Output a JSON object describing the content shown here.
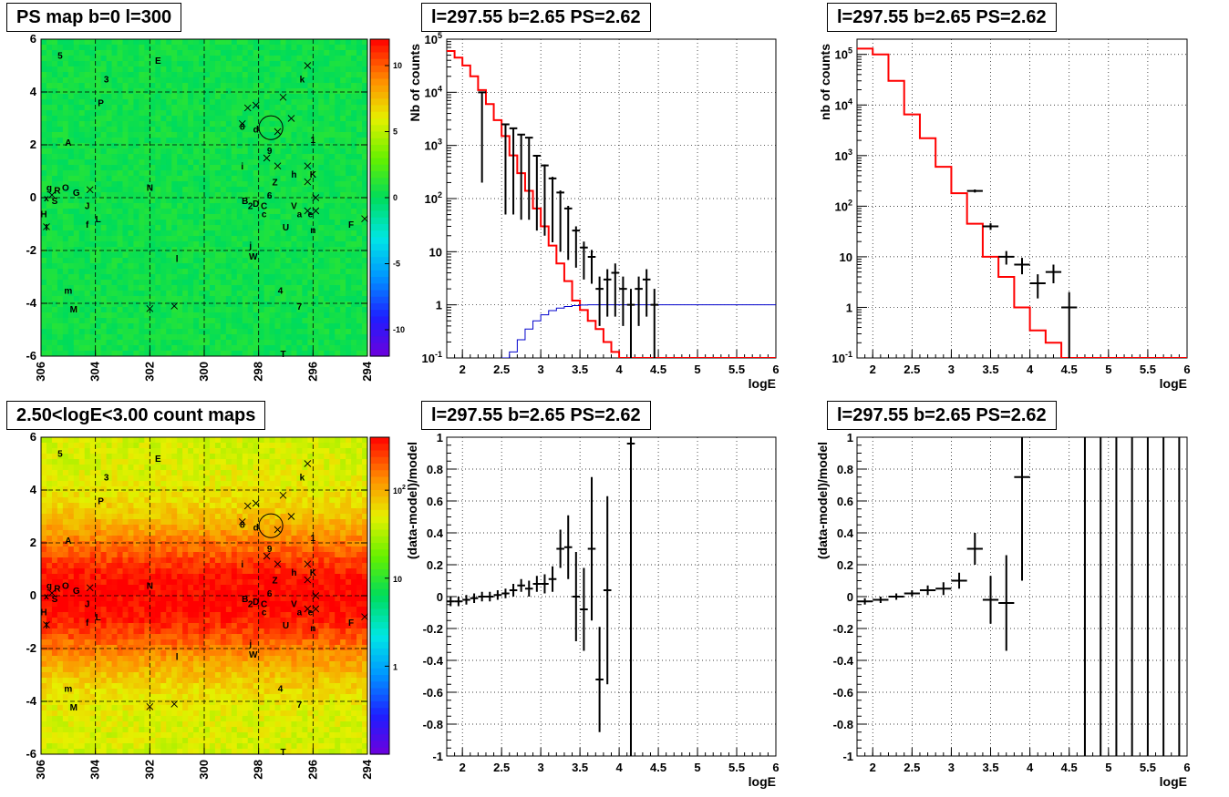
{
  "titles": {
    "ps_map": "PS map b=0 l=300",
    "count_map": "2.50<logE<3.00 count maps",
    "spec_left": "l=297.55 b=2.65 PS=2.62",
    "spec_right": "l=297.55 b=2.65 PS=2.62",
    "res_left": "l=297.55 b=2.65 PS=2.62",
    "res_right": "l=297.55 b=2.65 PS=2.62"
  },
  "colors": {
    "model": "#ff0000",
    "psf": "#0000cc",
    "data": "#000000",
    "grid": "#000000"
  },
  "chart_data": [
    {
      "id": "ps_map",
      "type": "heatmap",
      "title": "PS map b=0 l=300",
      "xlim": [
        306,
        294
      ],
      "ylim": [
        -6,
        6
      ],
      "x_ticks": [
        306,
        304,
        302,
        300,
        298,
        296,
        294
      ],
      "y_ticks": [
        -6,
        -4,
        -2,
        0,
        2,
        4,
        6
      ],
      "z_range": [
        -12,
        12
      ],
      "z_ticks": [
        10,
        5,
        0,
        -5,
        -10
      ],
      "colormap": "rainbow",
      "background_value": 0,
      "grid": true,
      "circle": {
        "l": 297.55,
        "b": 2.65,
        "r": 0.45
      },
      "sources": [
        {
          "label": "5",
          "l": 305.3,
          "b": 5.4
        },
        {
          "label": "3",
          "l": 303.6,
          "b": 4.5
        },
        {
          "label": "E",
          "l": 301.7,
          "b": 5.2
        },
        {
          "label": "k",
          "l": 296.4,
          "b": 4.5
        },
        {
          "label": "P",
          "l": 303.8,
          "b": 3.6
        },
        {
          "label": "A",
          "l": 305.0,
          "b": 2.1
        },
        {
          "label": "8",
          "l": 298.6,
          "b": 2.7
        },
        {
          "label": "d",
          "l": 298.1,
          "b": 2.6
        },
        {
          "label": "9",
          "l": 297.6,
          "b": 1.8
        },
        {
          "label": "1",
          "l": 296.0,
          "b": 2.2
        },
        {
          "label": "i",
          "l": 298.6,
          "b": 1.2
        },
        {
          "label": "h",
          "l": 296.7,
          "b": 0.9
        },
        {
          "label": "K",
          "l": 296.0,
          "b": 0.9
        },
        {
          "label": "Z",
          "l": 297.4,
          "b": 0.6
        },
        {
          "label": "N",
          "l": 302.0,
          "b": 0.4
        },
        {
          "label": "6",
          "l": 297.6,
          "b": 0.1
        },
        {
          "label": "g",
          "l": 305.7,
          "b": 0.4
        },
        {
          "label": "R",
          "l": 305.4,
          "b": 0.3
        },
        {
          "label": "O",
          "l": 305.1,
          "b": 0.4
        },
        {
          "label": "G",
          "l": 304.7,
          "b": 0.2
        },
        {
          "label": "x",
          "l": 305.8,
          "b": 0.0
        },
        {
          "label": "S",
          "l": 305.5,
          "b": -0.1
        },
        {
          "label": "J",
          "l": 304.3,
          "b": -0.3
        },
        {
          "label": "B",
          "l": 298.5,
          "b": -0.1
        },
        {
          "label": "2",
          "l": 298.3,
          "b": -0.3
        },
        {
          "label": "D",
          "l": 298.1,
          "b": -0.2
        },
        {
          "label": "C",
          "l": 297.8,
          "b": -0.3
        },
        {
          "label": "V",
          "l": 296.7,
          "b": -0.3
        },
        {
          "label": "H",
          "l": 305.9,
          "b": -0.6
        },
        {
          "label": "c",
          "l": 297.8,
          "b": -0.6
        },
        {
          "label": "a",
          "l": 296.5,
          "b": -0.6
        },
        {
          "label": "e",
          "l": 296.1,
          "b": -0.6
        },
        {
          "label": "L",
          "l": 303.9,
          "b": -0.8
        },
        {
          "label": "f",
          "l": 304.3,
          "b": -1.0
        },
        {
          "label": "I",
          "l": 305.8,
          "b": -1.1
        },
        {
          "label": "U",
          "l": 297.0,
          "b": -1.1
        },
        {
          "label": "n",
          "l": 296.0,
          "b": -1.2
        },
        {
          "label": "F",
          "l": 294.6,
          "b": -1.0
        },
        {
          "label": "j",
          "l": 298.3,
          "b": -1.8
        },
        {
          "label": "W",
          "l": 298.2,
          "b": -2.2
        },
        {
          "label": "l",
          "l": 301.0,
          "b": -2.3
        },
        {
          "label": "m",
          "l": 305.0,
          "b": -3.5
        },
        {
          "label": "4",
          "l": 297.2,
          "b": -3.5
        },
        {
          "label": "M",
          "l": 304.8,
          "b": -4.2
        },
        {
          "label": "7",
          "l": 296.5,
          "b": -4.1
        },
        {
          "label": "T",
          "l": 297.1,
          "b": -5.9
        }
      ],
      "crosses": [
        {
          "l": 296.2,
          "b": 5.0
        },
        {
          "l": 298.4,
          "b": 3.4
        },
        {
          "l": 298.1,
          "b": 3.5
        },
        {
          "l": 297.1,
          "b": 3.8
        },
        {
          "l": 296.8,
          "b": 3.0
        },
        {
          "l": 298.6,
          "b": 2.8
        },
        {
          "l": 297.3,
          "b": 2.5
        },
        {
          "l": 297.7,
          "b": 1.5
        },
        {
          "l": 296.2,
          "b": 1.2
        },
        {
          "l": 297.3,
          "b": 1.2
        },
        {
          "l": 296.2,
          "b": 0.6
        },
        {
          "l": 295.9,
          "b": 0.0
        },
        {
          "l": 296.2,
          "b": -0.5
        },
        {
          "l": 295.9,
          "b": -0.5
        },
        {
          "l": 304.2,
          "b": 0.3
        },
        {
          "l": 305.6,
          "b": 0.1
        },
        {
          "l": 305.8,
          "b": -1.1
        },
        {
          "l": 294.1,
          "b": -0.8
        },
        {
          "l": 302.0,
          "b": -4.2
        },
        {
          "l": 301.1,
          "b": -4.1
        }
      ]
    },
    {
      "id": "count_map",
      "type": "heatmap",
      "title": "2.50<logE<3.00 count maps",
      "xlim": [
        306,
        294
      ],
      "ylim": [
        -6,
        6
      ],
      "x_ticks": [
        306,
        304,
        302,
        300,
        298,
        296,
        294
      ],
      "y_ticks": [
        -6,
        -4,
        -2,
        0,
        2,
        4,
        6
      ],
      "z_range": [
        0.1,
        400
      ],
      "z_scale": "log",
      "z_ticks": [
        100,
        10,
        1
      ],
      "colormap": "rainbow",
      "grid": true,
      "circle": {
        "l": 297.55,
        "b": 2.65,
        "r": 0.45
      },
      "same_sources_as": "ps_map"
    },
    {
      "id": "spec_left",
      "type": "line",
      "title": "l=297.55 b=2.65 PS=2.62",
      "xlabel": "logE",
      "ylabel": "Nb of counts",
      "xlim": [
        1.8,
        6
      ],
      "ylim": [
        0.1,
        100000
      ],
      "y_scale": "log",
      "x_ticks": [
        2,
        2.5,
        3,
        3.5,
        4,
        4.5,
        5,
        5.5,
        6
      ],
      "grid": true,
      "bin_width": 0.1,
      "series": [
        {
          "name": "",
          "style": "step",
          "color": "#ff0000",
          "bin_low": 1.8,
          "values": [
            60000,
            45000,
            32000,
            20000,
            11000,
            6000,
            3000,
            1500,
            650,
            300,
            140,
            65,
            30,
            13,
            6,
            2.8,
            1.2,
            0.8,
            0.5,
            0.35,
            0.2,
            0.13,
            0.1,
            0.1,
            0.1,
            0.1,
            0.1,
            0.1,
            0.1,
            0.1,
            0.1,
            0.1,
            0.1,
            0.1,
            0.1,
            0.1,
            0.1,
            0.1,
            0.1,
            0.1,
            0.1,
            0.1
          ]
        },
        {
          "name": "",
          "style": "step",
          "color": "#0000cc",
          "bin_low": 2.5,
          "values": [
            0.1,
            0.13,
            0.22,
            0.35,
            0.5,
            0.65,
            0.78,
            0.87,
            0.93,
            0.97,
            0.99,
            1,
            1,
            1,
            1,
            1,
            1,
            1,
            1,
            1,
            1,
            1,
            1,
            1,
            1,
            1,
            1,
            1,
            1,
            1,
            1,
            1,
            1,
            1,
            1
          ]
        },
        {
          "name": "",
          "style": "errorbar",
          "color": "#000000",
          "x": [
            2.25,
            2.55,
            2.65,
            2.75,
            2.85,
            2.95,
            3.05,
            3.15,
            3.25,
            3.35,
            3.45,
            3.55,
            3.65,
            3.75,
            3.85,
            3.95,
            4.05,
            4.15,
            4.25,
            4.35,
            4.45
          ],
          "y": [
            10000,
            2500,
            2100,
            1600,
            1400,
            640,
            420,
            240,
            130,
            65,
            25,
            12,
            8,
            2,
            3,
            4,
            2,
            1,
            2,
            3,
            1
          ],
          "err_low": [
            9800,
            2450,
            2050,
            1560,
            1360,
            615,
            400,
            225,
            120,
            58,
            20,
            9,
            5.5,
            1.6,
            2.4,
            3.4,
            1.6,
            0.97,
            1.6,
            2.4,
            0.97
          ],
          "err_high": [
            100,
            50,
            45,
            40,
            37,
            25,
            20,
            16,
            12,
            8,
            5,
            3.5,
            2.8,
            1.4,
            1.7,
            2,
            1.4,
            1,
            1.4,
            1.7,
            1
          ]
        }
      ]
    },
    {
      "id": "spec_right",
      "type": "line",
      "title": "l=297.55 b=2.65 PS=2.62",
      "xlabel": "logE",
      "ylabel": "nb of counts",
      "xlim": [
        1.8,
        6
      ],
      "ylim": [
        0.1,
        200000
      ],
      "y_scale": "log",
      "x_ticks": [
        2,
        2.5,
        3,
        3.5,
        4,
        4.5,
        5,
        5.5,
        6
      ],
      "grid": true,
      "bin_width": 0.2,
      "series": [
        {
          "name": "",
          "style": "step",
          "color": "#ff0000",
          "bin_low": 1.8,
          "values": [
            130000,
            100000,
            30000,
            6500,
            2200,
            600,
            180,
            45,
            10,
            4,
            1,
            0.35,
            0.2,
            0.1,
            0.1,
            0.1,
            0.1,
            0.1,
            0.1,
            0.1,
            0.1
          ]
        },
        {
          "name": "",
          "style": "errorbar",
          "color": "#000000",
          "x": [
            3.3,
            3.5,
            3.7,
            3.9,
            4.1,
            4.3,
            4.5
          ],
          "y": [
            200,
            40,
            10,
            7,
            3,
            5,
            1
          ],
          "x_err": 0.1,
          "err_low": [
            14,
            6,
            3,
            2.5,
            1.5,
            2,
            0.9
          ],
          "err_high": [
            14,
            6,
            3,
            2.5,
            1.5,
            2,
            1
          ]
        }
      ]
    },
    {
      "id": "res_left",
      "type": "scatter",
      "title": "l=297.55 b=2.65 PS=2.62",
      "xlabel": "logE",
      "ylabel": "(data-model)/model",
      "xlim": [
        1.8,
        6
      ],
      "ylim": [
        -1,
        1
      ],
      "x_ticks": [
        2,
        2.5,
        3,
        3.5,
        4,
        4.5,
        5,
        5.5,
        6
      ],
      "y_ticks": [
        -1,
        -0.8,
        -0.6,
        -0.4,
        -0.2,
        0,
        0.2,
        0.4,
        0.6,
        0.8,
        1
      ],
      "grid": true,
      "series": [
        {
          "name": "",
          "color": "#000000",
          "x_err": 0.05,
          "x": [
            1.85,
            1.95,
            2.05,
            2.15,
            2.25,
            2.35,
            2.45,
            2.55,
            2.65,
            2.75,
            2.85,
            2.95,
            3.05,
            3.15,
            3.25,
            3.35,
            3.45,
            3.55,
            3.65,
            3.75,
            3.85,
            4.15
          ],
          "y": [
            -0.03,
            -0.03,
            -0.02,
            -0.01,
            0.0,
            0.0,
            0.01,
            0.02,
            0.04,
            0.07,
            0.05,
            0.08,
            0.08,
            0.11,
            0.3,
            0.31,
            0.0,
            -0.08,
            0.3,
            -0.52,
            0.04,
            0.96
          ],
          "err": [
            0.03,
            0.03,
            0.03,
            0.03,
            0.03,
            0.03,
            0.03,
            0.03,
            0.04,
            0.04,
            0.05,
            0.05,
            0.06,
            0.08,
            0.12,
            0.2,
            0.28,
            0.26,
            0.45,
            0.33,
            0.59,
            1.96
          ]
        }
      ]
    },
    {
      "id": "res_right",
      "type": "scatter",
      "title": "l=297.55 b=2.65 PS=2.62",
      "xlabel": "logE",
      "ylabel": "(data-model)/model",
      "xlim": [
        1.8,
        6
      ],
      "ylim": [
        -1,
        1
      ],
      "x_ticks": [
        2,
        2.5,
        3,
        3.5,
        4,
        4.5,
        5,
        5.5,
        6
      ],
      "y_ticks": [
        -1,
        -0.8,
        -0.6,
        -0.4,
        -0.2,
        0,
        0.2,
        0.4,
        0.6,
        0.8,
        1
      ],
      "grid": true,
      "series": [
        {
          "name": "",
          "color": "#000000",
          "x_err": 0.1,
          "x": [
            1.9,
            2.1,
            2.3,
            2.5,
            2.7,
            2.9,
            3.1,
            3.3,
            3.5,
            3.7,
            3.9
          ],
          "y": [
            -0.03,
            -0.02,
            0.0,
            0.02,
            0.04,
            0.05,
            0.1,
            0.3,
            -0.02,
            -0.04,
            0.75
          ],
          "err": [
            0.02,
            0.02,
            0.02,
            0.02,
            0.03,
            0.04,
            0.05,
            0.1,
            0.15,
            0.3,
            0.65
          ]
        }
      ],
      "vertical_lines_x": [
        4.7,
        4.9,
        5.1,
        5.3,
        5.5,
        5.7,
        5.9
      ]
    }
  ]
}
